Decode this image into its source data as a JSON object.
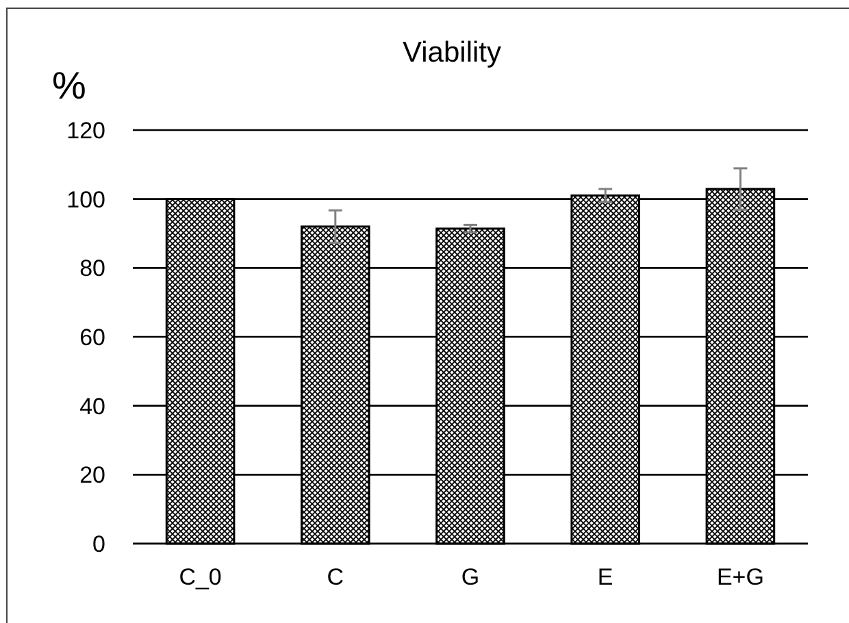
{
  "chart_data": {
    "type": "bar",
    "title": "Viability",
    "ylabel": "%",
    "categories": [
      "C_0",
      "C",
      "G",
      "E",
      "E+G"
    ],
    "values": [
      100,
      92,
      91.4,
      101,
      102.9
    ],
    "errors": [
      null,
      4.7,
      1.1,
      1.9,
      6
    ],
    "color": "#000000",
    "ylim": [
      0,
      120
    ],
    "yticks": [
      0,
      20,
      40,
      60,
      80,
      100,
      120
    ],
    "grid": "y"
  }
}
